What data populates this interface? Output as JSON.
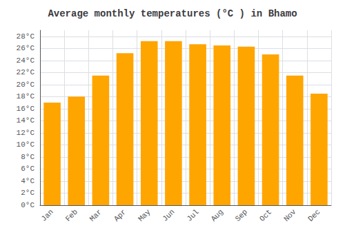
{
  "chart_data": {
    "type": "bar",
    "title": "Average monthly temperatures (°C ) in Bhamo",
    "categories": [
      "Jan",
      "Feb",
      "Mar",
      "Apr",
      "May",
      "Jun",
      "Jul",
      "Aug",
      "Sep",
      "Oct",
      "Nov",
      "Dec"
    ],
    "values": [
      17.0,
      18.0,
      21.5,
      25.2,
      27.2,
      27.2,
      26.7,
      26.5,
      26.3,
      25.0,
      21.5,
      18.5
    ],
    "color": "#FFA500",
    "ylim": [
      0,
      29
    ],
    "yticks": [
      {
        "value": 0,
        "label": "0°C"
      },
      {
        "value": 2,
        "label": "2°C"
      },
      {
        "value": 4,
        "label": "4°C"
      },
      {
        "value": 6,
        "label": "6°C"
      },
      {
        "value": 8,
        "label": "8°C"
      },
      {
        "value": 10,
        "label": "10°C"
      },
      {
        "value": 12,
        "label": "12°C"
      },
      {
        "value": 14,
        "label": "14°C"
      },
      {
        "value": 16,
        "label": "16°C"
      },
      {
        "value": 18,
        "label": "18°C"
      },
      {
        "value": 20,
        "label": "20°C"
      },
      {
        "value": 22,
        "label": "22°C"
      },
      {
        "value": 24,
        "label": "24°C"
      },
      {
        "value": 26,
        "label": "26°C"
      },
      {
        "value": 28,
        "label": "28°C"
      }
    ],
    "grid": true
  }
}
